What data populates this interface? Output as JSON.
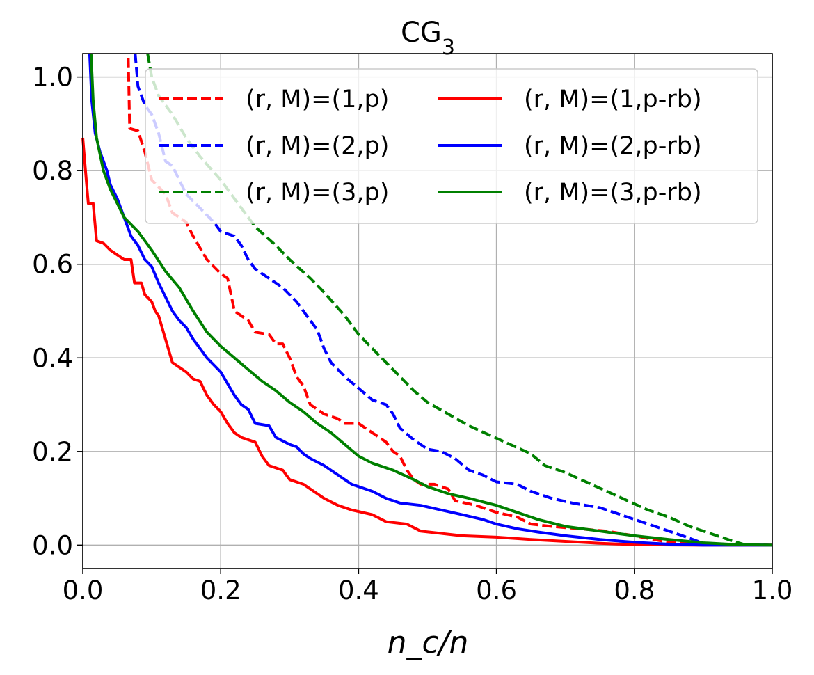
{
  "chart_data": {
    "type": "line",
    "title": "CG",
    "title_subscript": "3",
    "xlabel": "n_c/n",
    "ylabel": "",
    "xlim": [
      0.0,
      1.0
    ],
    "ylim": [
      -0.05,
      1.05
    ],
    "x_ticks": [
      "0.0",
      "0.2",
      "0.4",
      "0.6",
      "0.8",
      "1.0"
    ],
    "y_ticks": [
      "0.0",
      "0.2",
      "0.4",
      "0.6",
      "0.8",
      "1.0"
    ],
    "grid": true,
    "legend_location": "upper-right",
    "series": [
      {
        "name": "(r, M)=(1,p)",
        "label_prefix": "(r, M)=",
        "label_suffix": "(1,p)",
        "color": "#ff0000",
        "style": "dashed",
        "points": [
          [
            0.066,
            1.04
          ],
          [
            0.068,
            0.89
          ],
          [
            0.08,
            0.885
          ],
          [
            0.09,
            0.84
          ],
          [
            0.1,
            0.78
          ],
          [
            0.12,
            0.75
          ],
          [
            0.13,
            0.71
          ],
          [
            0.15,
            0.69
          ],
          [
            0.16,
            0.66
          ],
          [
            0.18,
            0.61
          ],
          [
            0.2,
            0.58
          ],
          [
            0.21,
            0.57
          ],
          [
            0.22,
            0.5
          ],
          [
            0.24,
            0.48
          ],
          [
            0.25,
            0.455
          ],
          [
            0.27,
            0.45
          ],
          [
            0.28,
            0.43
          ],
          [
            0.29,
            0.43
          ],
          [
            0.3,
            0.4
          ],
          [
            0.31,
            0.36
          ],
          [
            0.32,
            0.34
          ],
          [
            0.33,
            0.3
          ],
          [
            0.35,
            0.28
          ],
          [
            0.37,
            0.27
          ],
          [
            0.38,
            0.26
          ],
          [
            0.4,
            0.26
          ],
          [
            0.42,
            0.24
          ],
          [
            0.44,
            0.22
          ],
          [
            0.45,
            0.2
          ],
          [
            0.46,
            0.19
          ],
          [
            0.47,
            0.16
          ],
          [
            0.48,
            0.14
          ],
          [
            0.49,
            0.13
          ],
          [
            0.51,
            0.13
          ],
          [
            0.53,
            0.12
          ],
          [
            0.54,
            0.095
          ],
          [
            0.57,
            0.085
          ],
          [
            0.6,
            0.07
          ],
          [
            0.63,
            0.06
          ],
          [
            0.65,
            0.045
          ],
          [
            0.68,
            0.04
          ],
          [
            0.72,
            0.035
          ],
          [
            0.76,
            0.03
          ],
          [
            0.8,
            0.02
          ],
          [
            0.85,
            0.006
          ],
          [
            0.9,
            0.001
          ],
          [
            1.0,
            0.0
          ]
        ]
      },
      {
        "name": "(r, M)=(2,p)",
        "label_prefix": "(r, M)=",
        "label_suffix": "(2,p)",
        "color": "#0000ff",
        "style": "dashed",
        "points": [
          [
            0.076,
            1.05
          ],
          [
            0.08,
            0.98
          ],
          [
            0.09,
            0.94
          ],
          [
            0.1,
            0.92
          ],
          [
            0.11,
            0.88
          ],
          [
            0.12,
            0.82
          ],
          [
            0.13,
            0.81
          ],
          [
            0.15,
            0.75
          ],
          [
            0.17,
            0.72
          ],
          [
            0.19,
            0.69
          ],
          [
            0.2,
            0.67
          ],
          [
            0.22,
            0.66
          ],
          [
            0.23,
            0.64
          ],
          [
            0.24,
            0.61
          ],
          [
            0.25,
            0.59
          ],
          [
            0.27,
            0.57
          ],
          [
            0.29,
            0.55
          ],
          [
            0.3,
            0.535
          ],
          [
            0.31,
            0.52
          ],
          [
            0.32,
            0.5
          ],
          [
            0.33,
            0.48
          ],
          [
            0.34,
            0.46
          ],
          [
            0.35,
            0.42
          ],
          [
            0.36,
            0.39
          ],
          [
            0.38,
            0.36
          ],
          [
            0.4,
            0.335
          ],
          [
            0.42,
            0.31
          ],
          [
            0.44,
            0.3
          ],
          [
            0.45,
            0.28
          ],
          [
            0.46,
            0.25
          ],
          [
            0.48,
            0.225
          ],
          [
            0.5,
            0.205
          ],
          [
            0.52,
            0.2
          ],
          [
            0.54,
            0.185
          ],
          [
            0.56,
            0.16
          ],
          [
            0.58,
            0.15
          ],
          [
            0.6,
            0.135
          ],
          [
            0.63,
            0.13
          ],
          [
            0.65,
            0.115
          ],
          [
            0.68,
            0.1
          ],
          [
            0.71,
            0.09
          ],
          [
            0.75,
            0.08
          ],
          [
            0.78,
            0.065
          ],
          [
            0.81,
            0.05
          ],
          [
            0.84,
            0.035
          ],
          [
            0.87,
            0.02
          ],
          [
            0.9,
            0.004
          ],
          [
            0.94,
            0.001
          ],
          [
            1.0,
            0.0
          ]
        ]
      },
      {
        "name": "(r, M)=(3,p)",
        "label_prefix": "(r, M)=",
        "label_suffix": "(3,p)",
        "color": "#008000",
        "style": "dashed",
        "points": [
          [
            0.094,
            1.05
          ],
          [
            0.1,
            1.0
          ],
          [
            0.11,
            0.96
          ],
          [
            0.13,
            0.92
          ],
          [
            0.15,
            0.87
          ],
          [
            0.17,
            0.83
          ],
          [
            0.2,
            0.78
          ],
          [
            0.23,
            0.72
          ],
          [
            0.25,
            0.68
          ],
          [
            0.28,
            0.64
          ],
          [
            0.3,
            0.61
          ],
          [
            0.33,
            0.57
          ],
          [
            0.35,
            0.54
          ],
          [
            0.38,
            0.49
          ],
          [
            0.4,
            0.45
          ],
          [
            0.42,
            0.42
          ],
          [
            0.44,
            0.39
          ],
          [
            0.46,
            0.36
          ],
          [
            0.48,
            0.33
          ],
          [
            0.5,
            0.305
          ],
          [
            0.53,
            0.28
          ],
          [
            0.56,
            0.255
          ],
          [
            0.59,
            0.235
          ],
          [
            0.62,
            0.215
          ],
          [
            0.65,
            0.195
          ],
          [
            0.67,
            0.17
          ],
          [
            0.7,
            0.155
          ],
          [
            0.73,
            0.135
          ],
          [
            0.76,
            0.115
          ],
          [
            0.79,
            0.095
          ],
          [
            0.82,
            0.075
          ],
          [
            0.85,
            0.06
          ],
          [
            0.88,
            0.04
          ],
          [
            0.91,
            0.025
          ],
          [
            0.94,
            0.01
          ],
          [
            0.96,
            0.001
          ],
          [
            1.0,
            0.0
          ]
        ]
      },
      {
        "name": "(r, M)=(1,p-rb)",
        "label_prefix": "(r, M)=",
        "label_suffix": "(1,p-rb)",
        "color": "#ff0000",
        "style": "solid",
        "points": [
          [
            0.0,
            0.87
          ],
          [
            0.005,
            0.78
          ],
          [
            0.008,
            0.73
          ],
          [
            0.015,
            0.73
          ],
          [
            0.02,
            0.65
          ],
          [
            0.03,
            0.645
          ],
          [
            0.04,
            0.63
          ],
          [
            0.05,
            0.62
          ],
          [
            0.06,
            0.61
          ],
          [
            0.07,
            0.61
          ],
          [
            0.075,
            0.56
          ],
          [
            0.085,
            0.56
          ],
          [
            0.09,
            0.535
          ],
          [
            0.1,
            0.52
          ],
          [
            0.105,
            0.5
          ],
          [
            0.11,
            0.49
          ],
          [
            0.12,
            0.44
          ],
          [
            0.13,
            0.39
          ],
          [
            0.14,
            0.38
          ],
          [
            0.15,
            0.37
          ],
          [
            0.16,
            0.355
          ],
          [
            0.17,
            0.35
          ],
          [
            0.18,
            0.32
          ],
          [
            0.19,
            0.3
          ],
          [
            0.2,
            0.285
          ],
          [
            0.21,
            0.26
          ],
          [
            0.22,
            0.24
          ],
          [
            0.23,
            0.23
          ],
          [
            0.25,
            0.22
          ],
          [
            0.26,
            0.19
          ],
          [
            0.27,
            0.17
          ],
          [
            0.29,
            0.16
          ],
          [
            0.3,
            0.14
          ],
          [
            0.32,
            0.13
          ],
          [
            0.34,
            0.11
          ],
          [
            0.35,
            0.1
          ],
          [
            0.37,
            0.085
          ],
          [
            0.39,
            0.075
          ],
          [
            0.42,
            0.065
          ],
          [
            0.44,
            0.05
          ],
          [
            0.47,
            0.045
          ],
          [
            0.49,
            0.03
          ],
          [
            0.52,
            0.025
          ],
          [
            0.55,
            0.02
          ],
          [
            0.6,
            0.017
          ],
          [
            0.65,
            0.012
          ],
          [
            0.7,
            0.008
          ],
          [
            0.75,
            0.004
          ],
          [
            0.8,
            0.001
          ],
          [
            0.9,
            0.0
          ],
          [
            1.0,
            0.0
          ]
        ]
      },
      {
        "name": "(r, M)=(2,p-rb)",
        "label_prefix": "(r, M)=",
        "label_suffix": "(2,p-rb)",
        "color": "#0000ff",
        "style": "solid",
        "points": [
          [
            0.01,
            1.05
          ],
          [
            0.013,
            0.95
          ],
          [
            0.018,
            0.88
          ],
          [
            0.025,
            0.84
          ],
          [
            0.035,
            0.8
          ],
          [
            0.04,
            0.77
          ],
          [
            0.05,
            0.74
          ],
          [
            0.06,
            0.7
          ],
          [
            0.07,
            0.66
          ],
          [
            0.08,
            0.64
          ],
          [
            0.09,
            0.61
          ],
          [
            0.1,
            0.595
          ],
          [
            0.11,
            0.56
          ],
          [
            0.12,
            0.53
          ],
          [
            0.13,
            0.5
          ],
          [
            0.14,
            0.48
          ],
          [
            0.15,
            0.465
          ],
          [
            0.16,
            0.44
          ],
          [
            0.17,
            0.42
          ],
          [
            0.18,
            0.4
          ],
          [
            0.2,
            0.37
          ],
          [
            0.21,
            0.345
          ],
          [
            0.22,
            0.32
          ],
          [
            0.23,
            0.3
          ],
          [
            0.24,
            0.29
          ],
          [
            0.25,
            0.26
          ],
          [
            0.27,
            0.255
          ],
          [
            0.28,
            0.23
          ],
          [
            0.3,
            0.215
          ],
          [
            0.31,
            0.21
          ],
          [
            0.32,
            0.195
          ],
          [
            0.33,
            0.185
          ],
          [
            0.35,
            0.17
          ],
          [
            0.37,
            0.15
          ],
          [
            0.39,
            0.13
          ],
          [
            0.42,
            0.115
          ],
          [
            0.44,
            0.1
          ],
          [
            0.46,
            0.09
          ],
          [
            0.49,
            0.085
          ],
          [
            0.52,
            0.075
          ],
          [
            0.55,
            0.065
          ],
          [
            0.58,
            0.055
          ],
          [
            0.6,
            0.045
          ],
          [
            0.63,
            0.035
          ],
          [
            0.66,
            0.028
          ],
          [
            0.7,
            0.02
          ],
          [
            0.75,
            0.012
          ],
          [
            0.8,
            0.006
          ],
          [
            0.85,
            0.002
          ],
          [
            0.9,
            0.0
          ],
          [
            1.0,
            0.0
          ]
        ]
      },
      {
        "name": "(r, M)=(3,p-rb)",
        "label_prefix": "(r, M)=",
        "label_suffix": "(3,p-rb)",
        "color": "#008000",
        "style": "solid",
        "points": [
          [
            0.012,
            1.05
          ],
          [
            0.015,
            0.95
          ],
          [
            0.02,
            0.87
          ],
          [
            0.03,
            0.8
          ],
          [
            0.04,
            0.76
          ],
          [
            0.05,
            0.73
          ],
          [
            0.06,
            0.7
          ],
          [
            0.08,
            0.67
          ],
          [
            0.1,
            0.63
          ],
          [
            0.12,
            0.585
          ],
          [
            0.14,
            0.55
          ],
          [
            0.16,
            0.5
          ],
          [
            0.18,
            0.455
          ],
          [
            0.2,
            0.425
          ],
          [
            0.22,
            0.4
          ],
          [
            0.24,
            0.375
          ],
          [
            0.26,
            0.35
          ],
          [
            0.28,
            0.33
          ],
          [
            0.3,
            0.305
          ],
          [
            0.32,
            0.285
          ],
          [
            0.34,
            0.26
          ],
          [
            0.36,
            0.24
          ],
          [
            0.38,
            0.215
          ],
          [
            0.4,
            0.19
          ],
          [
            0.42,
            0.175
          ],
          [
            0.45,
            0.16
          ],
          [
            0.48,
            0.14
          ],
          [
            0.5,
            0.125
          ],
          [
            0.53,
            0.11
          ],
          [
            0.56,
            0.1
          ],
          [
            0.6,
            0.085
          ],
          [
            0.63,
            0.07
          ],
          [
            0.66,
            0.055
          ],
          [
            0.7,
            0.04
          ],
          [
            0.75,
            0.03
          ],
          [
            0.8,
            0.02
          ],
          [
            0.85,
            0.012
          ],
          [
            0.9,
            0.005
          ],
          [
            0.95,
            0.001
          ],
          [
            1.0,
            0.0
          ]
        ]
      }
    ]
  }
}
